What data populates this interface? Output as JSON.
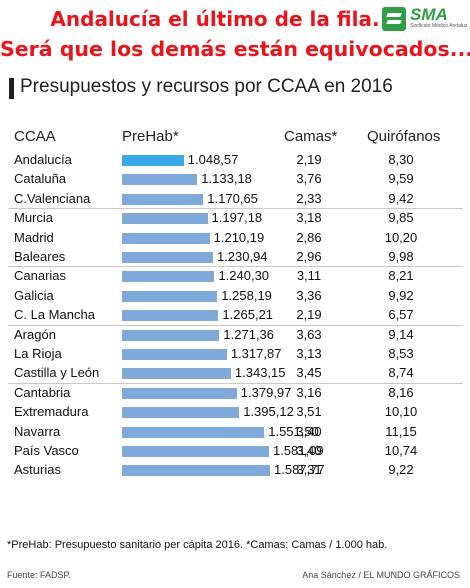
{
  "headline": {
    "line1": "Andalucía el último de la fila.",
    "line2": "Será que los demás están equivocados..."
  },
  "logo": {
    "text": "SMA",
    "subtitle": "Sindicato Médico Andaluz"
  },
  "colors": {
    "headline": "#e8151b",
    "bar": "#7ea9d8",
    "bar_highlight": "#3ba8e8"
  },
  "chart_data": {
    "type": "table",
    "title": "Presupuestos y recursos por CCAA en 2016",
    "columns": [
      "CCAA",
      "PreHab*",
      "Camas*",
      "Quirófanos"
    ],
    "bar_column": "PreHab*",
    "bar_scale_max": 1600,
    "highlight": "Andalucía",
    "rows": [
      {
        "ccaa": "Andalucía",
        "prehab": "1.048,57",
        "prehab_value": 1048.57,
        "camas": "2,19",
        "quirofanos": "8,30"
      },
      {
        "ccaa": "Cataluña",
        "prehab": "1.133,18",
        "prehab_value": 1133.18,
        "camas": "3,76",
        "quirofanos": "9,59"
      },
      {
        "ccaa": "C.Valenciana",
        "prehab": "1.170,65",
        "prehab_value": 1170.65,
        "camas": "2,33",
        "quirofanos": "9,42"
      },
      {
        "ccaa": "Murcia",
        "prehab": "1.197,18",
        "prehab_value": 1197.18,
        "camas": "3,18",
        "quirofanos": "9,85"
      },
      {
        "ccaa": "Madrid",
        "prehab": "1.210,19",
        "prehab_value": 1210.19,
        "camas": "2,86",
        "quirofanos": "10,20"
      },
      {
        "ccaa": "Baleares",
        "prehab": "1.230,94",
        "prehab_value": 1230.94,
        "camas": "2,96",
        "quirofanos": "9,98"
      },
      {
        "ccaa": "Canarias",
        "prehab": "1.240,30",
        "prehab_value": 1240.3,
        "camas": "3,11",
        "quirofanos": "8,21"
      },
      {
        "ccaa": "Galicia",
        "prehab": "1.258,19",
        "prehab_value": 1258.19,
        "camas": "3,36",
        "quirofanos": "9,92"
      },
      {
        "ccaa": "C. La Mancha",
        "prehab": "1.265,21",
        "prehab_value": 1265.21,
        "camas": "2,19",
        "quirofanos": "6,57"
      },
      {
        "ccaa": "Aragón",
        "prehab": "1.271,36",
        "prehab_value": 1271.36,
        "camas": "3,63",
        "quirofanos": "9,14"
      },
      {
        "ccaa": "La Rioja",
        "prehab": "1.317,87",
        "prehab_value": 1317.87,
        "camas": "3,13",
        "quirofanos": "8,53"
      },
      {
        "ccaa": "Castilla y León",
        "prehab": "1.343,15",
        "prehab_value": 1343.15,
        "camas": "3,45",
        "quirofanos": "8,74"
      },
      {
        "ccaa": "Cantabria",
        "prehab": "1.379,97",
        "prehab_value": 1379.97,
        "camas": "3,16",
        "quirofanos": "8,16"
      },
      {
        "ccaa": "Extremadura",
        "prehab": "1.395,12",
        "prehab_value": 1395.12,
        "camas": "3,51",
        "quirofanos": "10,10"
      },
      {
        "ccaa": "Navarra",
        "prehab": "1.551,50",
        "prehab_value": 1551.5,
        "camas": "3,40",
        "quirofanos": "11,15"
      },
      {
        "ccaa": "País Vasco",
        "prehab": "1.581,09",
        "prehab_value": 1581.09,
        "camas": "3,40",
        "quirofanos": "10,74"
      },
      {
        "ccaa": "Asturias",
        "prehab": "1.587,77",
        "prehab_value": 1587.77,
        "camas": "3,31",
        "quirofanos": "9,22"
      }
    ],
    "footnote": "*PreHab: Presupuesto sanitario per cápita 2016. *Camas: Camas / 1.000 hab.",
    "source": "Fuente: FADSP.",
    "credit": "Ana Sánchez / EL MUNDO GRÁFICOS"
  }
}
